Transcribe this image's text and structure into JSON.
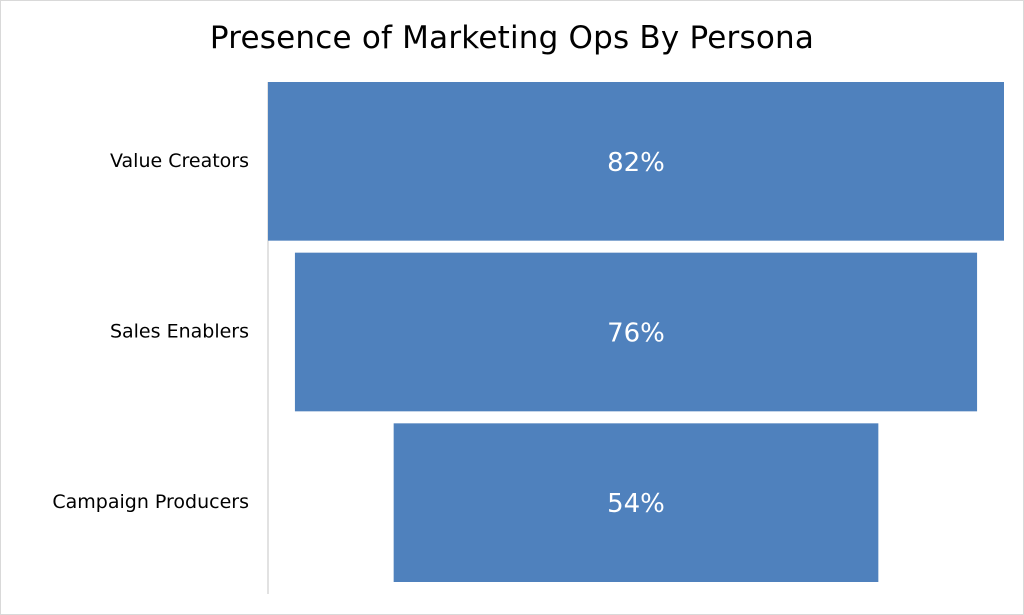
{
  "chart_data": {
    "type": "bar",
    "orientation": "horizontal-funnel",
    "title": "Presence of Marketing Ops By Persona",
    "categories": [
      "Value Creators",
      "Sales Enablers",
      "Campaign Producers"
    ],
    "values": [
      82,
      76,
      54
    ],
    "value_labels": [
      "82%",
      "76%",
      "54%"
    ],
    "unit": "%",
    "xlim": [
      0,
      82
    ],
    "grid": false,
    "legend": "none",
    "colors": {
      "bar": "#4f81bd",
      "bar_label": "#ffffff",
      "axis": "#d9d9d9",
      "text": "#000000"
    }
  }
}
